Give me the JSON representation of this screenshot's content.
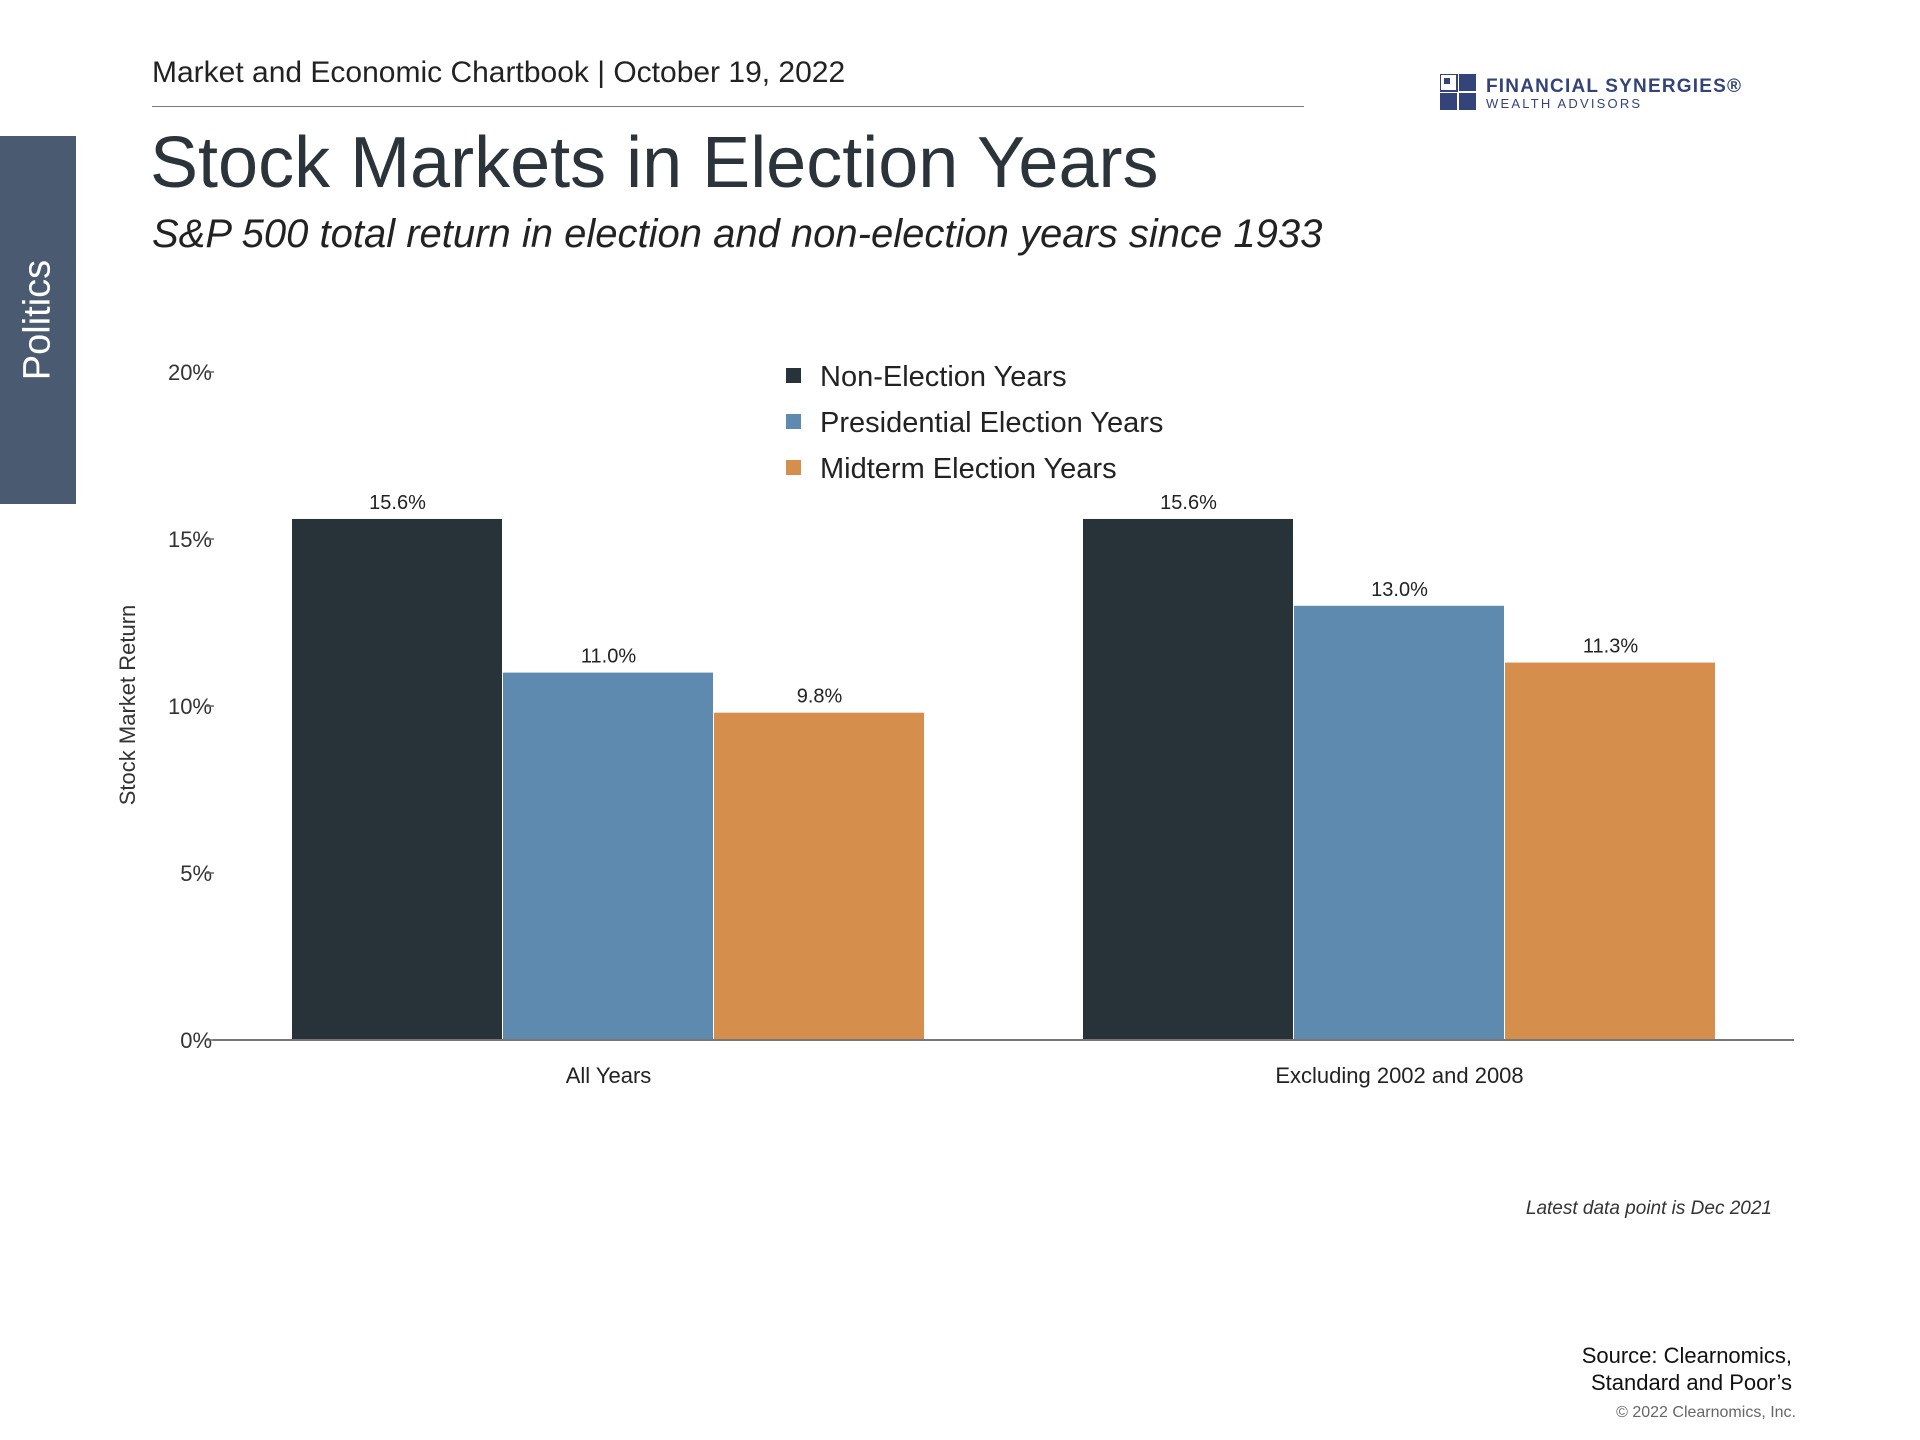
{
  "side_tab": {
    "label": "Politics"
  },
  "header": {
    "text": "Market and Economic Chartbook | October 19, 2022"
  },
  "logo": {
    "name": "FINANCIAL SYNERGIES®",
    "tagline": "WEALTH ADVISORS",
    "color": "#34437a"
  },
  "title": "Stock Markets in Election Years",
  "subtitle": "S&P 500 total return in election and non-election years since 1933",
  "chart_data": {
    "type": "bar",
    "title": "Stock Markets in Election Years",
    "subtitle": "S&P 500 total return in election and non-election years since 1933",
    "xlabel": "",
    "ylabel": "Stock Market Return",
    "ylim": [
      0,
      20
    ],
    "yticks": [
      0,
      5,
      10,
      15,
      20
    ],
    "ytick_labels": [
      "0%",
      "5%",
      "10%",
      "15%",
      "20%"
    ],
    "grid": false,
    "legend_position": "top-center",
    "categories": [
      "All Years",
      "Excluding 2002 and 2008"
    ],
    "series": [
      {
        "name": "Non-Election Years",
        "color": "#283239",
        "values": [
          15.6,
          15.6
        ],
        "labels": [
          "15.6%",
          "15.6%"
        ]
      },
      {
        "name": "Presidential Election Years",
        "color": "#5e8ab0",
        "values": [
          11.0,
          13.0
        ],
        "labels": [
          "11.0%",
          "13.0%"
        ]
      },
      {
        "name": "Midterm Election Years",
        "color": "#d68e4c",
        "values": [
          9.8,
          11.3
        ],
        "labels": [
          "9.8%",
          "11.3%"
        ]
      }
    ]
  },
  "note": "Latest data point is Dec 2021",
  "source": {
    "line1": "Source: Clearnomics,",
    "line2": "Standard and Poor’s"
  },
  "copyright": "© 2022 Clearnomics, Inc."
}
